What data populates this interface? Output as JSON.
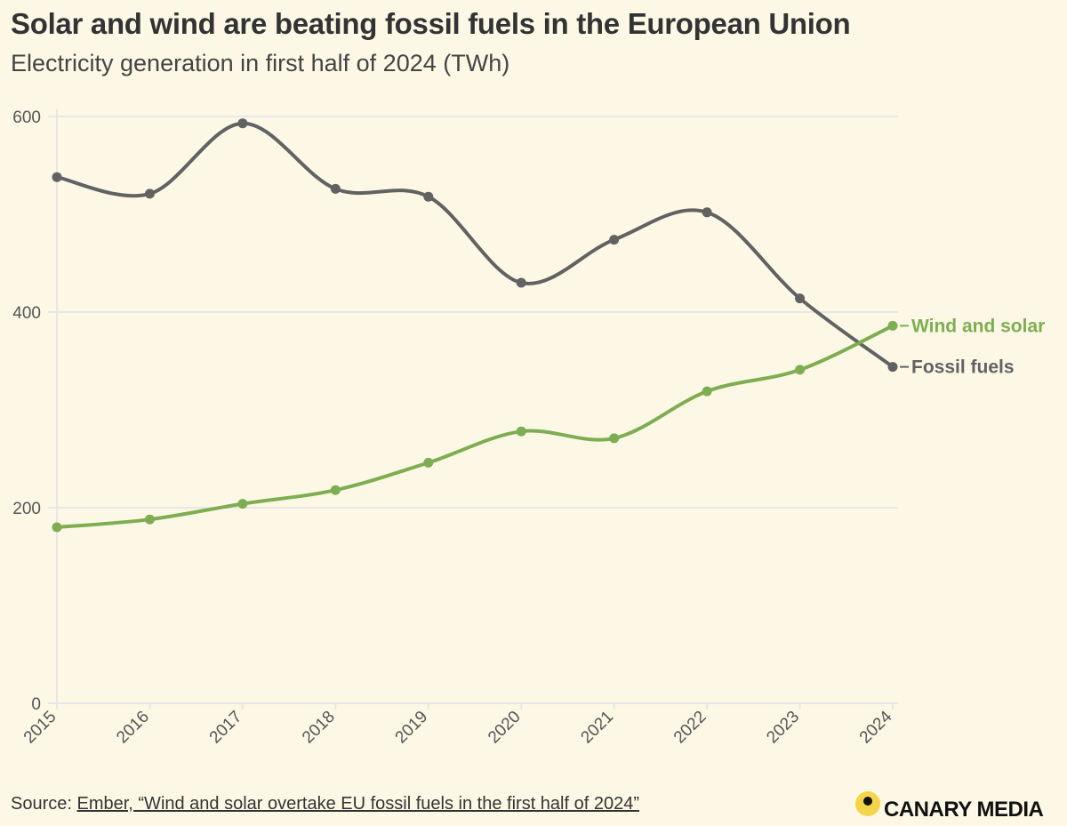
{
  "header": {
    "title": "Solar and wind are beating fossil fuels in the European Union",
    "subtitle": "Electricity generation in first half of 2024 (TWh)"
  },
  "footer": {
    "source_prefix": "Source: ",
    "source_link": "Ember, “Wind and solar overtake EU fossil fuels in the first half of 2024”",
    "brand": "CANARY MEDIA"
  },
  "colors": {
    "background": "#fdf8e6",
    "fossil": "#626262",
    "wind_solar": "#7eae51",
    "grid": "#e8e6e6",
    "brand_dot": "#f5d44a"
  },
  "chart_data": {
    "type": "line",
    "title": "Solar and wind are beating fossil fuels in the European Union",
    "subtitle": "Electricity generation in first half of 2024 (TWh)",
    "xlabel": "",
    "ylabel": "",
    "x": [
      "2015",
      "2016",
      "2017",
      "2018",
      "2019",
      "2020",
      "2021",
      "2022",
      "2023",
      "2024"
    ],
    "ylim": [
      0,
      600
    ],
    "yticks": [
      "0",
      "200",
      "400",
      "600"
    ],
    "grid": true,
    "series": [
      {
        "name": "Fossil fuels",
        "color": "#626262",
        "values": [
          538,
          521,
          593,
          526,
          518,
          430,
          474,
          502,
          414,
          344
        ]
      },
      {
        "name": "Wind and solar",
        "color": "#7eae51",
        "values": [
          180,
          188,
          204,
          218,
          246,
          278,
          271,
          319,
          341,
          386
        ]
      }
    ],
    "legend": "direct labels at line ends (right)"
  }
}
